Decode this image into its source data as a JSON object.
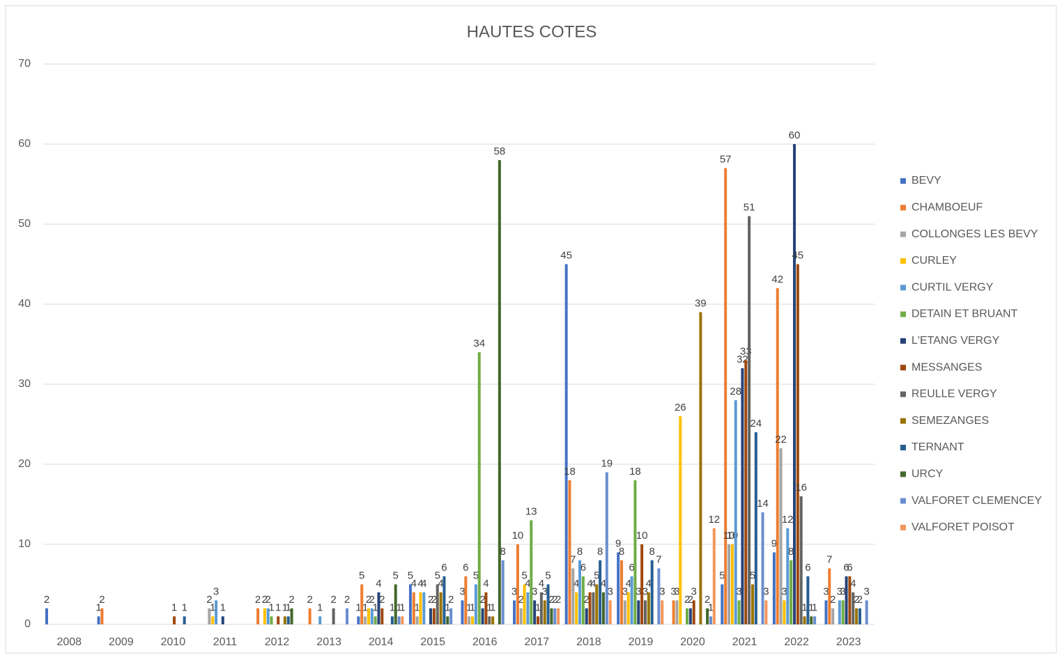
{
  "chart_data": {
    "type": "bar",
    "title": "HAUTES COTES",
    "categories": [
      "2008",
      "2009",
      "2010",
      "2011",
      "2012",
      "2013",
      "2014",
      "2015",
      "2016",
      "2017",
      "2018",
      "2019",
      "2020",
      "2021",
      "2022",
      "2023"
    ],
    "series": [
      {
        "name": "BEVY",
        "color": "#4472c4",
        "values": [
          2,
          1,
          null,
          null,
          null,
          null,
          1,
          5,
          3,
          3,
          45,
          9,
          null,
          5,
          9,
          3
        ]
      },
      {
        "name": "CHAMBOEUF",
        "color": "#ed7d31",
        "values": [
          null,
          2,
          null,
          null,
          2,
          2,
          5,
          4,
          6,
          10,
          18,
          8,
          3,
          57,
          42,
          7
        ]
      },
      {
        "name": "COLLONGES LES BEVY",
        "color": "#a5a5a5",
        "values": [
          null,
          null,
          null,
          2,
          null,
          null,
          1,
          1,
          1,
          2,
          7,
          3,
          3,
          10,
          22,
          2
        ]
      },
      {
        "name": "CURLEY",
        "color": "#ffc000",
        "values": [
          null,
          null,
          null,
          1,
          2,
          null,
          2,
          4,
          1,
          5,
          4,
          4,
          26,
          10,
          3,
          null
        ]
      },
      {
        "name": "CURTIL VERGY",
        "color": "#5b9bd5",
        "values": [
          null,
          null,
          null,
          3,
          2,
          1,
          2,
          4,
          5,
          4,
          8,
          6,
          null,
          28,
          12,
          3
        ]
      },
      {
        "name": "DETAIN ET BRUANT",
        "color": "#70ad47",
        "values": [
          null,
          null,
          null,
          null,
          1,
          null,
          1,
          null,
          34,
          13,
          6,
          18,
          2,
          3,
          8,
          3
        ]
      },
      {
        "name": "L'ETANG VERGY",
        "color": "#264478",
        "values": [
          null,
          null,
          null,
          1,
          null,
          null,
          4,
          2,
          2,
          3,
          2,
          3,
          2,
          32,
          60,
          6
        ]
      },
      {
        "name": "MESSANGES",
        "color": "#9e480e",
        "values": [
          null,
          null,
          1,
          null,
          1,
          null,
          2,
          2,
          4,
          1,
          4,
          10,
          3,
          33,
          45,
          6
        ]
      },
      {
        "name": "REULLE VERGY",
        "color": "#636363",
        "values": [
          null,
          null,
          null,
          null,
          null,
          2,
          null,
          5,
          1,
          4,
          4,
          3,
          null,
          51,
          16,
          4
        ]
      },
      {
        "name": "SEMEZANGES",
        "color": "#997300",
        "values": [
          null,
          null,
          null,
          null,
          1,
          null,
          null,
          4,
          1,
          3,
          5,
          4,
          39,
          5,
          1,
          2
        ]
      },
      {
        "name": "TERNANT",
        "color": "#255e91",
        "values": [
          null,
          null,
          1,
          null,
          1,
          null,
          1,
          6,
          null,
          5,
          8,
          8,
          null,
          24,
          6,
          2
        ]
      },
      {
        "name": "URCY",
        "color": "#43682b",
        "values": [
          null,
          null,
          null,
          null,
          2,
          null,
          5,
          1,
          58,
          2,
          4,
          null,
          2,
          null,
          1,
          null
        ]
      },
      {
        "name": "VALFORET CLEMENCEY",
        "color": "#698ed0",
        "values": [
          null,
          null,
          null,
          null,
          null,
          2,
          1,
          2,
          8,
          2,
          19,
          7,
          1,
          14,
          1,
          3
        ]
      },
      {
        "name": "VALFORET POISOT",
        "color": "#f1975a",
        "values": [
          null,
          null,
          null,
          null,
          null,
          null,
          1,
          null,
          null,
          2,
          3,
          3,
          12,
          3,
          null,
          null
        ]
      }
    ],
    "ylim": [
      0,
      70
    ],
    "yticks": [
      0,
      10,
      20,
      30,
      40,
      50,
      60,
      70
    ],
    "grid": true,
    "legend": "right"
  }
}
